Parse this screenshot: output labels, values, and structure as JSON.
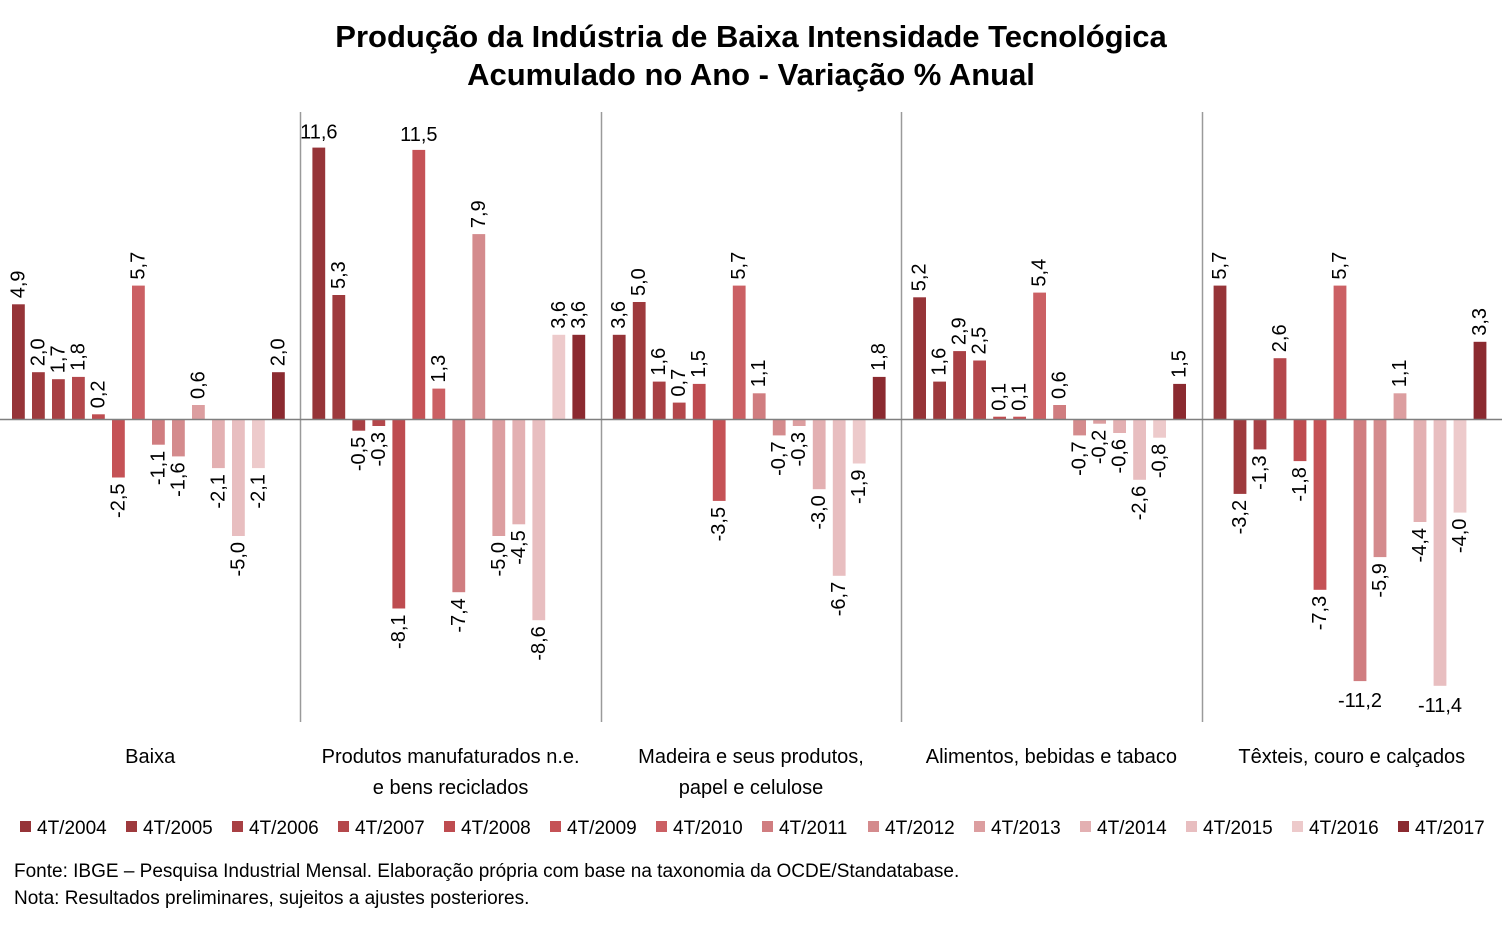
{
  "title_line1": "Produção da Indústria de Baixa Intensidade Tecnológica",
  "title_line2": "Acumulado no Ano - Variação % Anual",
  "footnote_source": "Fonte: IBGE – Pesquisa Industrial Mensal. Elaboração própria com base na taxonomia da OCDE/Standatabase.",
  "footnote_note": "Nota: Resultados preliminares,  sujeitos a ajustes posteriores.",
  "chart_data": {
    "type": "bar",
    "title": "Produção da Indústria de Baixa Intensidade Tecnológica / Acumulado no Ano - Variação % Anual",
    "categories": [
      "Baixa",
      "Produtos manufaturados n.e. e bens reciclados",
      "Madeira e seus produtos, papel e celulose",
      "Alimentos, bebidas e tabaco",
      "Têxteis, couro e calçados"
    ],
    "category_lines": [
      [
        "Baixa"
      ],
      [
        "Produtos manufaturados n.e.",
        "e bens reciclados"
      ],
      [
        "Madeira e seus produtos,",
        "papel e celulose"
      ],
      [
        "Alimentos, bebidas e tabaco"
      ],
      [
        "Têxteis, couro e calçados"
      ]
    ],
    "series": [
      {
        "name": "4T/2004",
        "color": "#963438",
        "values": [
          4.9,
          11.6,
          3.6,
          5.2,
          5.7
        ]
      },
      {
        "name": "4T/2005",
        "color": "#9E3A3D",
        "values": [
          2.0,
          5.3,
          5.0,
          1.6,
          -3.2
        ]
      },
      {
        "name": "4T/2006",
        "color": "#A84044",
        "values": [
          1.7,
          -0.5,
          1.6,
          2.9,
          -1.3
        ]
      },
      {
        "name": "4T/2007",
        "color": "#B4484C",
        "values": [
          1.8,
          -0.3,
          0.7,
          2.5,
          2.6
        ]
      },
      {
        "name": "4T/2008",
        "color": "#BE4C50",
        "values": [
          0.2,
          -8.1,
          1.5,
          0.1,
          -1.8
        ]
      },
      {
        "name": "4T/2009",
        "color": "#C55256",
        "values": [
          -2.5,
          11.5,
          -3.5,
          0.1,
          -7.3
        ]
      },
      {
        "name": "4T/2010",
        "color": "#CB6064",
        "values": [
          5.7,
          1.3,
          5.7,
          5.4,
          5.7
        ]
      },
      {
        "name": "4T/2011",
        "color": "#D07D80",
        "values": [
          -1.1,
          -7.4,
          1.1,
          0.6,
          -11.2
        ]
      },
      {
        "name": "4T/2012",
        "color": "#D48B8D",
        "values": [
          -1.6,
          7.9,
          -0.7,
          -0.7,
          -5.9
        ]
      },
      {
        "name": "4T/2013",
        "color": "#DC9EA0",
        "values": [
          0.6,
          -5.0,
          -0.3,
          -0.2,
          1.1
        ]
      },
      {
        "name": "4T/2014",
        "color": "#E3B0B2",
        "values": [
          -2.1,
          -4.5,
          -3.0,
          -0.6,
          -4.4
        ]
      },
      {
        "name": "4T/2015",
        "color": "#E8BEC0",
        "values": [
          -5.0,
          -8.6,
          -6.7,
          -2.6,
          -11.4
        ]
      },
      {
        "name": "4T/2016",
        "color": "#EDCACB",
        "values": [
          -2.1,
          3.6,
          -1.9,
          -0.8,
          -4.0
        ]
      },
      {
        "name": "4T/2017",
        "color": "#8B2A30",
        "values": [
          2.0,
          3.6,
          1.8,
          1.5,
          3.3
        ]
      }
    ],
    "legend_position": "bottom",
    "grid": false,
    "decimal_separator": ","
  }
}
